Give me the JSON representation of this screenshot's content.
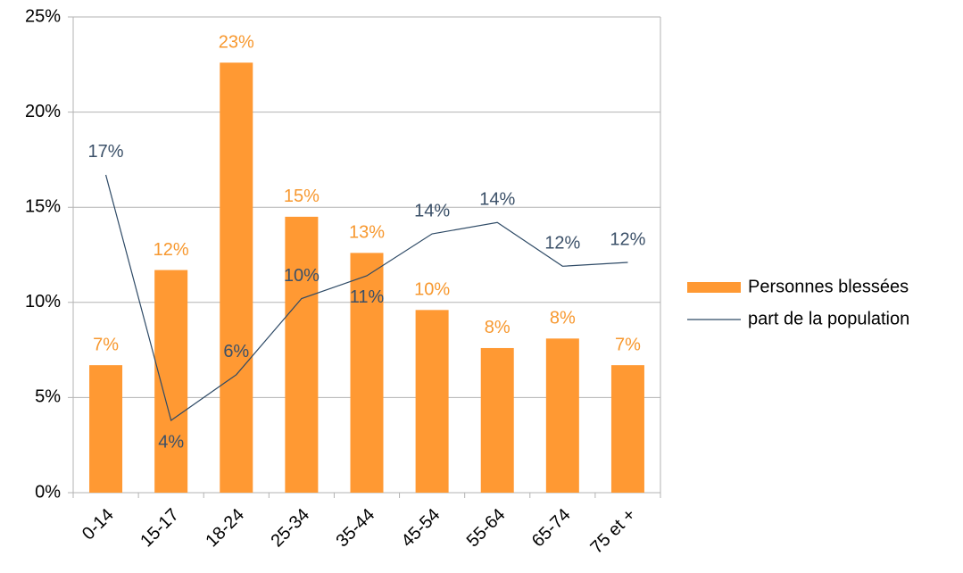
{
  "chart_data": {
    "type": "bar",
    "categories": [
      "0-14",
      "15-17",
      "18-24",
      "25-34",
      "35-44",
      "45-54",
      "55-64",
      "65-74",
      "75 et +"
    ],
    "series": [
      {
        "name": "Personnes blessées",
        "type": "bar",
        "color": "#ff9933",
        "label_color": "#f7982f",
        "values": [
          6.7,
          11.7,
          22.6,
          14.5,
          12.6,
          9.6,
          7.6,
          8.1,
          6.7
        ],
        "value_labels": [
          "7%",
          "12%",
          "23%",
          "15%",
          "13%",
          "10%",
          "8%",
          "8%",
          "7%"
        ]
      },
      {
        "name": "part de la population",
        "type": "line",
        "color": "#2e4a66",
        "label_color": "#3b5068",
        "values": [
          16.7,
          3.8,
          6.2,
          10.2,
          11.4,
          13.6,
          14.2,
          11.9,
          12.1
        ],
        "value_labels": [
          "17%",
          "4%",
          "6%",
          "10%",
          "11%",
          "14%",
          "14%",
          "12%",
          "12%"
        ]
      }
    ],
    "ylim": [
      0,
      25
    ],
    "yticks": [
      {
        "value": 0,
        "label": "0%"
      },
      {
        "value": 5,
        "label": "5%"
      },
      {
        "value": 10,
        "label": "10%"
      },
      {
        "value": 15,
        "label": "15%"
      },
      {
        "value": 20,
        "label": "20%"
      },
      {
        "value": 25,
        "label": "25%"
      }
    ],
    "grid": true,
    "legend": "right"
  }
}
